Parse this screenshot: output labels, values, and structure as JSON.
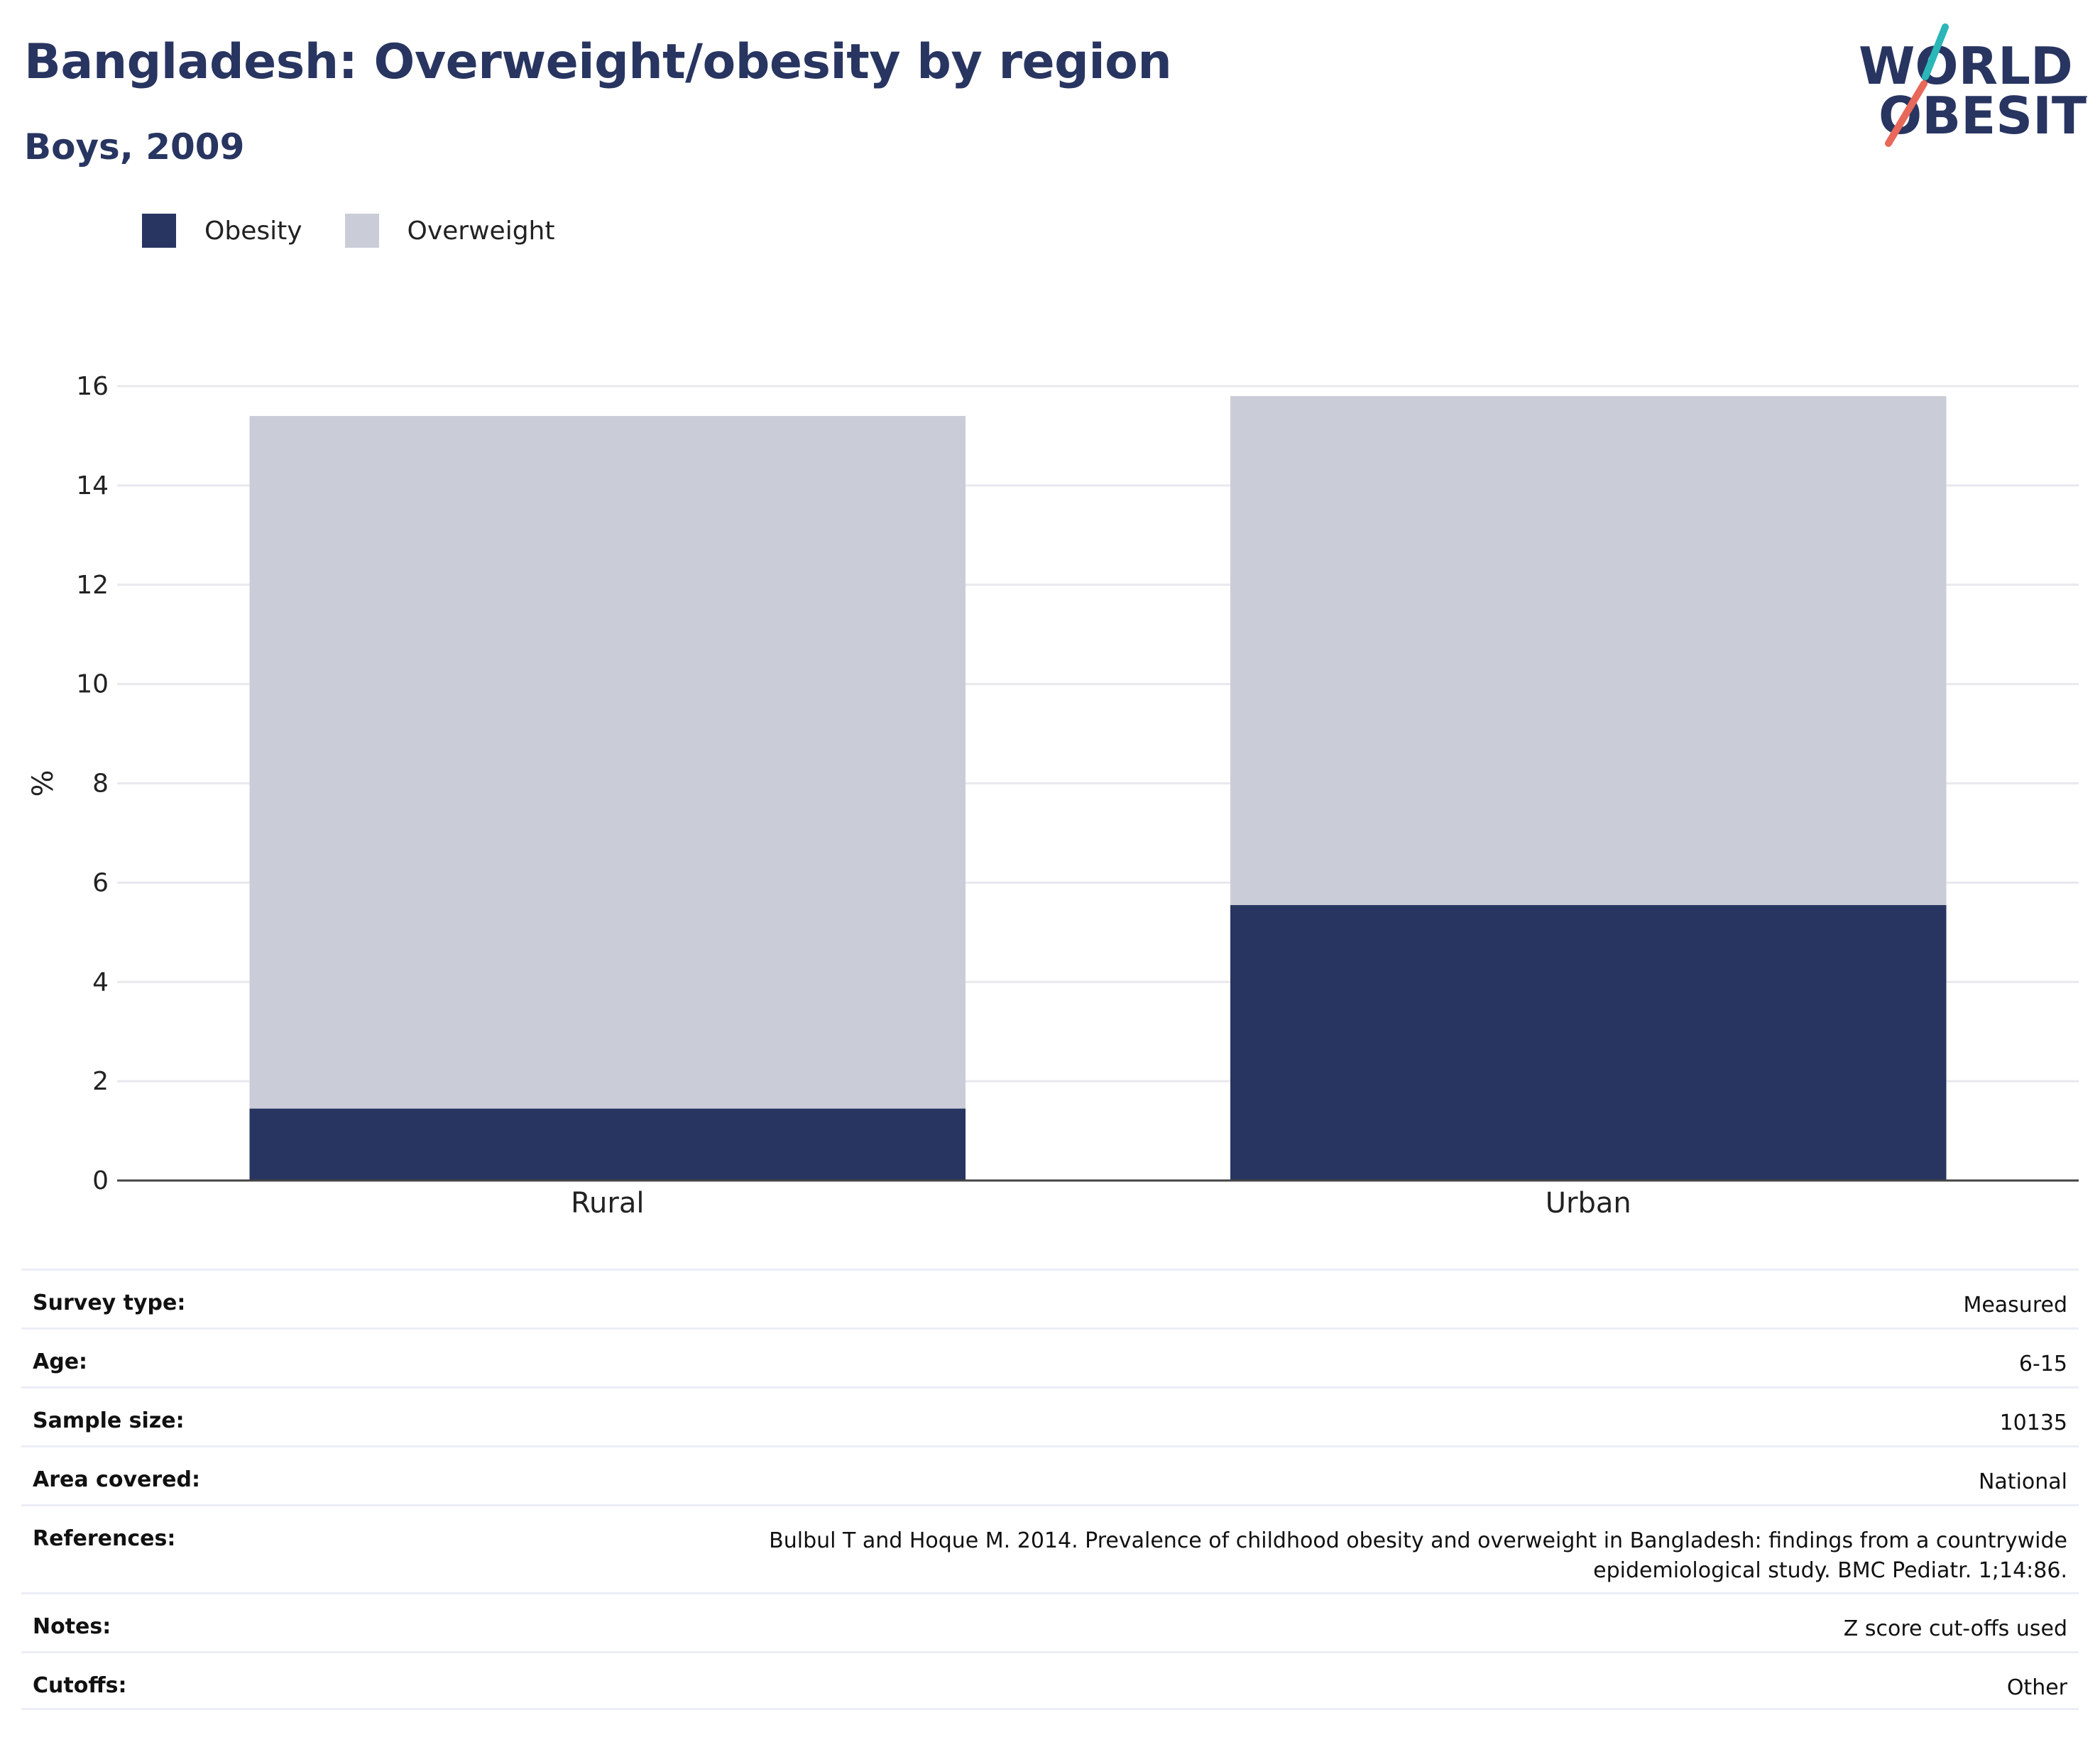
{
  "header": {
    "title": "Bangladesh: Overweight/obesity by region",
    "subtitle": "Boys, 2009"
  },
  "logo": {
    "line1": "WORLD",
    "line2": "OBESITY",
    "colors": {
      "text": "#283561",
      "slash_top": "#2bb6b8",
      "slash_bottom": "#e8685a"
    }
  },
  "colors": {
    "obesity": "#283561",
    "overweight": "#cacdd8",
    "grid": "#e8e8ee",
    "axis": "#444444"
  },
  "legend": [
    {
      "label": "Obesity",
      "color": "#283561"
    },
    {
      "label": "Overweight",
      "color": "#cacdd8"
    }
  ],
  "chart_data": {
    "type": "bar",
    "stacked": true,
    "categories": [
      "Rural",
      "Urban"
    ],
    "series": [
      {
        "name": "Obesity",
        "values": [
          1.45,
          5.55
        ]
      },
      {
        "name": "Overweight",
        "values": [
          13.95,
          10.25
        ]
      }
    ],
    "totals": [
      15.4,
      15.8
    ],
    "ylabel": "%",
    "ylim": [
      0,
      16
    ],
    "yticks": [
      0,
      2,
      4,
      6,
      8,
      10,
      12,
      14,
      16
    ],
    "grid": true,
    "legend_position": "top-left"
  },
  "info": [
    {
      "key": "Survey type:",
      "value": "Measured"
    },
    {
      "key": "Age:",
      "value": "6-15"
    },
    {
      "key": "Sample size:",
      "value": "10135"
    },
    {
      "key": "Area covered:",
      "value": "National"
    },
    {
      "key": "References:",
      "value": "Bulbul T and Hoque M. 2014. Prevalence of childhood obesity and overweight in Bangladesh: findings from a countrywide epidemiological study. BMC Pediatr. 1;14:86."
    },
    {
      "key": "Notes:",
      "value": "Z score cut-offs used"
    },
    {
      "key": "Cutoffs:",
      "value": "Other"
    }
  ]
}
